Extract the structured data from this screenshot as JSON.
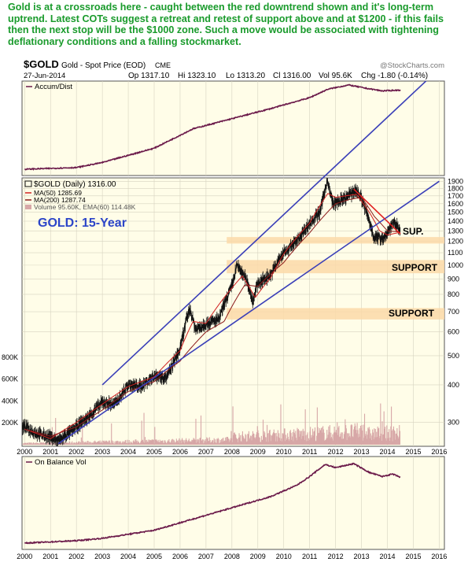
{
  "headline": "Gold is at a crossroads here - caught between the red downtrend shown and it's long-term uptrend. Latest COTs suggest a retreat and retest of support above and at $1200 - if this fails then the next stop will be the $1000 zone. Such a move would be associated with tightening deflationary conditions and a falling stockmarket.",
  "header": {
    "symbol": "$GOLD",
    "name": "Gold - Spot Price (EOD)",
    "exchange": "CME",
    "source": "@StockCharts.com",
    "date": "27-Jun-2014",
    "op": "Op 1317.10",
    "hi": "Hi 1323.10",
    "lo": "Lo 1313.20",
    "cl": "Cl 1316.00",
    "vol": "Vol 95.6K",
    "chg": "Chg -1.80 (-0.14%)"
  },
  "panels": {
    "top_label": "Accum/Dist",
    "bottom_label": "On Balance Vol"
  },
  "legend": [
    "$GOLD (Daily) 1316.00",
    "MA(50) 1285.69",
    "MA(200) 1287.74",
    "Volume 95.60K, EMA(60) 114.48K"
  ],
  "annotations": {
    "big_label": "GOLD: 15-Year",
    "sup": "SUP.",
    "support_1000": "SUPPORT",
    "support_700": "SUPPORT"
  },
  "colors": {
    "headline": "#1a9b2c",
    "panel_bg": "#fffde8",
    "price_bars": "#111111",
    "ma50": "#d02020",
    "ma200": "#8b1a1a",
    "indicator_line": "#6b1a4a",
    "trendline_blue": "#3a3fb8",
    "trendline_red": "#e02020",
    "support_band": "#fcd9a8",
    "label_blue": "#2c45c8",
    "volume": "#d7a7a7"
  },
  "chart_data": {
    "type": "line",
    "title": "$GOLD Gold - Spot Price (EOD)",
    "price_axis_labels": [
      "1900",
      "1800",
      "1700",
      "1600",
      "1500",
      "1400",
      "1300",
      "1200",
      "1100",
      "1000",
      "900",
      "800",
      "700",
      "600",
      "500",
      "400",
      "300"
    ],
    "volume_axis_labels": [
      "800K",
      "600K",
      "400K",
      "200K"
    ],
    "x_tick_labels": [
      "2000",
      "2001",
      "2002",
      "2003",
      "2004",
      "2005",
      "2006",
      "2007",
      "2008",
      "2009",
      "2010",
      "2011",
      "2012",
      "2013",
      "2014",
      "2015",
      "2016"
    ],
    "log_scale": true,
    "grid": true,
    "series": [
      {
        "name": "$GOLD",
        "x": [
          2000.0,
          2000.5,
          2001.0,
          2001.3,
          2001.8,
          2002.5,
          2003.0,
          2003.5,
          2004.0,
          2004.5,
          2005.0,
          2005.5,
          2006.0,
          2006.37,
          2006.6,
          2007.0,
          2007.5,
          2008.0,
          2008.2,
          2008.6,
          2008.8,
          2009.0,
          2009.5,
          2010.0,
          2010.5,
          2011.0,
          2011.4,
          2011.67,
          2011.9,
          2012.3,
          2012.8,
          2013.0,
          2013.3,
          2013.5,
          2013.9,
          2014.2,
          2014.5
        ],
        "values": [
          290,
          275,
          268,
          260,
          280,
          315,
          350,
          345,
          400,
          395,
          430,
          425,
          525,
          720,
          610,
          640,
          660,
          850,
          1000,
          880,
          760,
          870,
          930,
          1100,
          1200,
          1380,
          1500,
          1900,
          1600,
          1650,
          1780,
          1670,
          1400,
          1230,
          1240,
          1380,
          1316
        ]
      },
      {
        "name": "MA(50)",
        "x": [
          2000.0,
          2001.0,
          2002.0,
          2003.0,
          2004.0,
          2005.0,
          2006.0,
          2006.5,
          2007.0,
          2008.0,
          2008.4,
          2008.9,
          2009.5,
          2010.0,
          2011.0,
          2011.7,
          2012.0,
          2012.8,
          2013.3,
          2013.7,
          2014.0,
          2014.5
        ],
        "values": [
          285,
          265,
          300,
          345,
          395,
          425,
          520,
          650,
          640,
          840,
          920,
          780,
          910,
          1090,
          1380,
          1730,
          1680,
          1720,
          1500,
          1300,
          1260,
          1286
        ]
      },
      {
        "name": "MA(200)",
        "x": [
          2000.0,
          2001.0,
          2002.0,
          2003.0,
          2004.0,
          2005.0,
          2006.0,
          2007.0,
          2007.7,
          2008.5,
          2009.0,
          2010.0,
          2011.0,
          2012.0,
          2012.5,
          2013.0,
          2013.5,
          2014.0,
          2014.5
        ],
        "values": [
          285,
          270,
          290,
          330,
          380,
          410,
          480,
          600,
          650,
          860,
          850,
          1020,
          1280,
          1600,
          1650,
          1680,
          1450,
          1300,
          1288
        ]
      }
    ],
    "volume_ema": {
      "name": "EMA(60)",
      "last": "114.48K"
    },
    "trendlines": [
      {
        "name": "upper uptrend",
        "color": "blue",
        "from": {
          "x": 2003.0,
          "y": 400
        },
        "to": {
          "x": 2016.0,
          "y": 4500
        }
      },
      {
        "name": "lower uptrend",
        "color": "blue",
        "from": {
          "x": 2001.3,
          "y": 255
        },
        "to": {
          "x": 2016.0,
          "y": 1900
        }
      },
      {
        "name": "red downtrend",
        "color": "red",
        "from": {
          "x": 2012.7,
          "y": 1790
        },
        "to": {
          "x": 2014.5,
          "y": 1270
        }
      }
    ],
    "support_zones": [
      {
        "label": "SUP.",
        "low": 1180,
        "high": 1240
      },
      {
        "label": "SUPPORT",
        "low": 940,
        "high": 1040
      },
      {
        "label": "SUPPORT",
        "low": 660,
        "high": 720
      }
    ],
    "accum_dist_shape": {
      "x": [
        2000.0,
        2002.0,
        2003.0,
        2005.0,
        2006.5,
        2008.0,
        2009.5,
        2011.0,
        2011.7,
        2012.5,
        2013.2,
        2013.8,
        2014.5
      ],
      "values": [
        0.0,
        0.02,
        0.08,
        0.25,
        0.48,
        0.6,
        0.72,
        0.85,
        0.95,
        1.0,
        0.96,
        0.93,
        0.94
      ]
    },
    "obv_shape": {
      "x": [
        2000.0,
        2002.0,
        2003.0,
        2005.0,
        2006.5,
        2008.0,
        2009.5,
        2010.5,
        2011.0,
        2011.6,
        2012.0,
        2012.7,
        2013.3,
        2013.8,
        2014.2,
        2014.5
      ],
      "values": [
        0.0,
        0.03,
        0.06,
        0.16,
        0.3,
        0.44,
        0.58,
        0.72,
        0.83,
        0.98,
        0.94,
        0.99,
        0.88,
        0.83,
        0.86,
        0.82
      ]
    },
    "xlim": [
      1999.9,
      2016.2
    ],
    "ylim": [
      250,
      2000
    ]
  }
}
